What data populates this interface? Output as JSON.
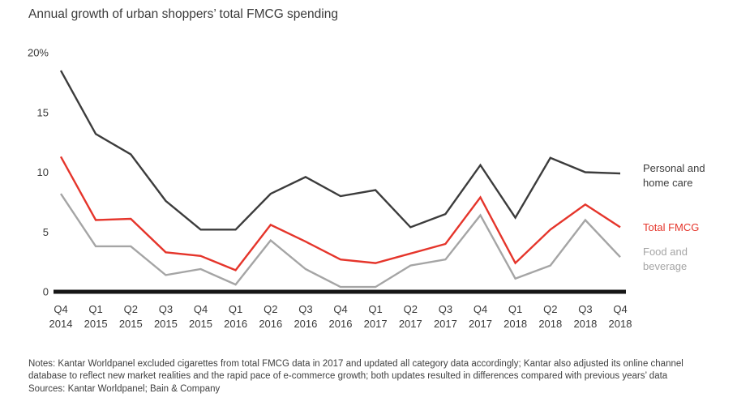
{
  "title": "Annual growth of urban shoppers’ total FMCG spending",
  "chart_data": {
    "type": "line",
    "grid": false,
    "legend_position": "right",
    "axis_color": "#161616",
    "ylim": [
      0,
      20
    ],
    "y_ticks": [
      {
        "value": 0,
        "label": "0"
      },
      {
        "value": 5,
        "label": "5"
      },
      {
        "value": 10,
        "label": "10"
      },
      {
        "value": 15,
        "label": "15"
      },
      {
        "value": 20,
        "label": "20%"
      }
    ],
    "categories": [
      {
        "quarter": "Q4",
        "year": "2014"
      },
      {
        "quarter": "Q1",
        "year": "2015"
      },
      {
        "quarter": "Q2",
        "year": "2015"
      },
      {
        "quarter": "Q3",
        "year": "2015"
      },
      {
        "quarter": "Q4",
        "year": "2015"
      },
      {
        "quarter": "Q1",
        "year": "2016"
      },
      {
        "quarter": "Q2",
        "year": "2016"
      },
      {
        "quarter": "Q3",
        "year": "2016"
      },
      {
        "quarter": "Q4",
        "year": "2016"
      },
      {
        "quarter": "Q1",
        "year": "2017"
      },
      {
        "quarter": "Q2",
        "year": "2017"
      },
      {
        "quarter": "Q3",
        "year": "2017"
      },
      {
        "quarter": "Q4",
        "year": "2017"
      },
      {
        "quarter": "Q1",
        "year": "2018"
      },
      {
        "quarter": "Q2",
        "year": "2018"
      },
      {
        "quarter": "Q3",
        "year": "2018"
      },
      {
        "quarter": "Q4",
        "year": "2018"
      }
    ],
    "series": [
      {
        "name": "Personal and home care",
        "legend_lines": [
          "Personal and",
          "home care"
        ],
        "color": "#3c3c3c",
        "values": [
          18.5,
          13.2,
          11.5,
          7.6,
          5.2,
          5.2,
          8.2,
          9.6,
          8.0,
          8.5,
          5.4,
          6.5,
          10.6,
          6.2,
          11.2,
          10.0,
          9.9
        ]
      },
      {
        "name": "Total FMCG",
        "legend_lines": [
          "Total FMCG"
        ],
        "color": "#e5352b",
        "values": [
          11.3,
          6.0,
          6.1,
          3.3,
          3.0,
          1.8,
          5.6,
          4.2,
          2.7,
          2.4,
          3.2,
          4.0,
          7.9,
          2.4,
          5.2,
          7.3,
          5.4
        ]
      },
      {
        "name": "Food and beverage",
        "legend_lines": [
          "Food and",
          "beverage"
        ],
        "color": "#a5a5a5",
        "values": [
          8.2,
          3.8,
          3.8,
          1.4,
          1.9,
          0.6,
          4.3,
          1.9,
          0.4,
          0.4,
          2.2,
          2.7,
          6.4,
          1.1,
          2.2,
          6.0,
          2.9
        ]
      }
    ]
  },
  "notes": "Notes: Kantar Worldpanel excluded cigarettes from total FMCG data in 2017 and updated all category data accordingly; Kantar also adjusted its online channel database to reflect new market realities and the rapid pace of e-commerce growth; both updates resulted in differences compared with previous years’ data",
  "sources": "Sources: Kantar Worldpanel; Bain &amp; Company"
}
